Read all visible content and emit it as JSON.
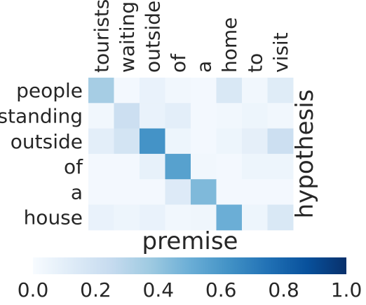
{
  "chart_data": {
    "type": "heatmap",
    "x_categories": [
      "tourists",
      "waiting",
      "outside",
      "of",
      "a",
      "home",
      "to",
      "visit"
    ],
    "y_categories": [
      "people",
      "standing",
      "outside",
      "of",
      "a",
      "house"
    ],
    "values": [
      [
        0.35,
        0.02,
        0.07,
        0.03,
        0.02,
        0.15,
        0.03,
        0.12
      ],
      [
        0.03,
        0.22,
        0.07,
        0.1,
        0.02,
        0.03,
        0.05,
        0.03
      ],
      [
        0.1,
        0.18,
        0.62,
        0.05,
        0.02,
        0.05,
        0.09,
        0.22
      ],
      [
        0.02,
        0.02,
        0.08,
        0.56,
        0.03,
        0.02,
        0.05,
        0.05
      ],
      [
        0.02,
        0.02,
        0.02,
        0.13,
        0.45,
        0.02,
        0.02,
        0.02
      ],
      [
        0.07,
        0.05,
        0.07,
        0.03,
        0.04,
        0.5,
        0.05,
        0.15
      ]
    ],
    "xlabel": "premise",
    "ylabel": "hypothesis",
    "colorbar": {
      "range": [
        0.0,
        1.0
      ],
      "ticks": [
        "0.0",
        "0.2",
        "0.4",
        "0.6",
        "0.8",
        "1.0"
      ],
      "orientation": "horizontal",
      "colormap": "Blues"
    },
    "colors": {
      "low": "#f7fbff",
      "high": "#08306b"
    }
  }
}
